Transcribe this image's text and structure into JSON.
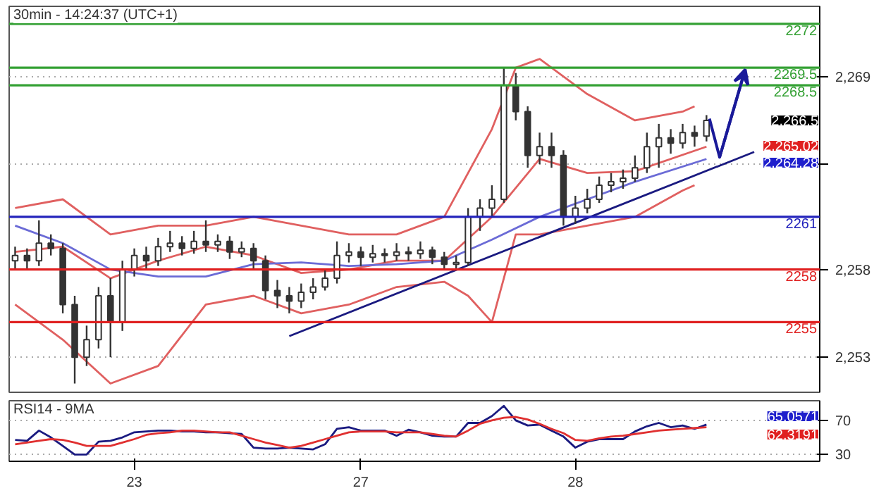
{
  "chart_data": [
    {
      "type": "candlestick",
      "title": "30min - 14:24:37 (UTC+1)",
      "categories": [
        null,
        null,
        null,
        null,
        null,
        null,
        null,
        null,
        null,
        null,
        null,
        null,
        null,
        null,
        null,
        null,
        null,
        null,
        null,
        null,
        null,
        null,
        null,
        null,
        null,
        null,
        null,
        null,
        null,
        null,
        null,
        null,
        null,
        null,
        null,
        null,
        null,
        null,
        null,
        null,
        null,
        null,
        null,
        null,
        null,
        null,
        null,
        null,
        null,
        null,
        null,
        null,
        null,
        null,
        null,
        null,
        null,
        null,
        null,
        null,
        null,
        null,
        null,
        null,
        null,
        null,
        null,
        null
      ],
      "ohlc": [
        [
          2258.5,
          2259.3,
          2258.0,
          2258.8
        ],
        [
          2258.8,
          2259.2,
          2258.0,
          2258.5
        ],
        [
          2258.5,
          2260.8,
          2258.2,
          2259.5
        ],
        [
          2259.5,
          2260.0,
          2258.8,
          2259.2
        ],
        [
          2259.2,
          2259.5,
          2255.5,
          2256.0
        ],
        [
          2256.0,
          2256.5,
          2251.5,
          2253.0
        ],
        [
          2253.0,
          2254.8,
          2252.5,
          2254.0
        ],
        [
          2254.0,
          2257.0,
          2253.5,
          2256.5
        ],
        [
          2256.5,
          2257.5,
          2253.0,
          2255.0
        ],
        [
          2255.0,
          2258.5,
          2254.5,
          2258.0
        ],
        [
          2258.0,
          2259.2,
          2257.6,
          2258.8
        ],
        [
          2258.8,
          2259.3,
          2258.0,
          2258.5
        ],
        [
          2258.5,
          2259.8,
          2258.2,
          2259.3
        ],
        [
          2259.3,
          2260.2,
          2259.0,
          2259.5
        ],
        [
          2259.5,
          2259.9,
          2258.8,
          2259.2
        ],
        [
          2259.2,
          2260.2,
          2258.9,
          2259.6
        ],
        [
          2259.6,
          2260.8,
          2259.0,
          2259.4
        ],
        [
          2259.4,
          2260.0,
          2259.0,
          2259.6
        ],
        [
          2259.6,
          2259.9,
          2258.6,
          2259.0
        ],
        [
          2259.0,
          2259.6,
          2258.7,
          2259.2
        ],
        [
          2259.2,
          2259.5,
          2258.0,
          2258.5
        ],
        [
          2258.5,
          2258.8,
          2256.3,
          2256.8
        ],
        [
          2256.8,
          2257.4,
          2255.8,
          2256.5
        ],
        [
          2256.5,
          2257.0,
          2255.5,
          2256.2
        ],
        [
          2256.2,
          2257.2,
          2255.8,
          2256.7
        ],
        [
          2256.7,
          2257.5,
          2256.3,
          2257.0
        ],
        [
          2257.0,
          2258.0,
          2256.8,
          2257.5
        ],
        [
          2257.5,
          2259.6,
          2257.2,
          2258.8
        ],
        [
          2258.8,
          2259.5,
          2258.4,
          2259.0
        ],
        [
          2259.0,
          2259.3,
          2258.2,
          2258.7
        ],
        [
          2258.7,
          2259.4,
          2258.4,
          2258.9
        ],
        [
          2258.9,
          2259.2,
          2258.4,
          2258.8
        ],
        [
          2258.8,
          2259.5,
          2258.5,
          2259.0
        ],
        [
          2259.0,
          2259.3,
          2258.5,
          2258.9
        ],
        [
          2258.9,
          2259.6,
          2258.6,
          2259.1
        ],
        [
          2259.1,
          2259.3,
          2258.3,
          2258.7
        ],
        [
          2258.7,
          2259.0,
          2258.0,
          2258.3
        ],
        [
          2258.3,
          2258.8,
          2258.0,
          2258.4
        ],
        [
          2258.4,
          2261.5,
          2258.2,
          2261.0
        ],
        [
          2261.0,
          2262.0,
          2260.2,
          2261.5
        ],
        [
          2261.5,
          2262.8,
          2261.0,
          2262.0
        ],
        [
          2262.0,
          2269.5,
          2261.8,
          2268.5
        ],
        [
          2268.5,
          2269.2,
          2266.5,
          2267.0
        ],
        [
          2267.0,
          2267.3,
          2263.8,
          2264.5
        ],
        [
          2264.5,
          2265.8,
          2264.0,
          2265.0
        ],
        [
          2265.0,
          2265.8,
          2263.8,
          2264.5
        ],
        [
          2264.5,
          2264.8,
          2260.5,
          2261.0
        ],
        [
          2261.0,
          2262.2,
          2260.6,
          2261.5
        ],
        [
          2261.5,
          2262.6,
          2261.2,
          2262.0
        ],
        [
          2262.0,
          2263.3,
          2261.8,
          2262.8
        ],
        [
          2262.8,
          2263.5,
          2262.4,
          2263.0
        ],
        [
          2263.0,
          2263.7,
          2262.6,
          2263.2
        ],
        [
          2263.2,
          2264.5,
          2263.0,
          2263.8
        ],
        [
          2263.8,
          2265.8,
          2263.5,
          2265.0
        ],
        [
          2265.0,
          2266.3,
          2263.8,
          2265.5
        ],
        [
          2265.5,
          2266.0,
          2264.6,
          2265.2
        ],
        [
          2265.2,
          2266.3,
          2264.9,
          2265.8
        ],
        [
          2265.8,
          2266.2,
          2265.0,
          2265.6
        ],
        [
          2265.6,
          2266.8,
          2265.3,
          2266.5
        ],
        null,
        null,
        null,
        null,
        null,
        null,
        null,
        null,
        null
      ],
      "color": "#333333",
      "series": [
        {
          "type": "line",
          "color": "#e06060",
          "values": [
            2261.5,
            null,
            null,
            null,
            2262,
            null,
            null,
            null,
            2260,
            null,
            null,
            null,
            2260.5,
            null,
            null,
            null,
            2260.5,
            null,
            null,
            null,
            2261,
            null,
            null,
            null,
            2260.5,
            null,
            null,
            null,
            2260,
            null,
            null,
            null,
            2260,
            null,
            null,
            null,
            2261,
            null,
            null,
            null,
            2266,
            null,
            2269.5,
            null,
            2270,
            null,
            null,
            null,
            2268,
            null,
            null,
            null,
            2266.5,
            null,
            null,
            null,
            2267,
            2267.3,
            null,
            null,
            null,
            null,
            null,
            null,
            null,
            null,
            null,
            null
          ]
        },
        {
          "type": "line",
          "color": "#e06060",
          "values": [
            2259,
            null,
            null,
            null,
            2259.3,
            null,
            null,
            null,
            2257.5,
            null,
            null,
            null,
            2258.5,
            null,
            null,
            null,
            2259.3,
            null,
            null,
            null,
            2258.8,
            null,
            null,
            null,
            2257.8,
            null,
            null,
            null,
            2258,
            null,
            null,
            null,
            2258.5,
            null,
            null,
            null,
            2258.5,
            null,
            null,
            null,
            2261,
            null,
            null,
            null,
            2264.3,
            null,
            null,
            null,
            2263.5,
            null,
            null,
            null,
            2263.6,
            null,
            null,
            null,
            null,
            null,
            2265,
            null,
            null,
            null,
            null,
            null,
            null,
            null,
            null,
            null
          ]
        },
        {
          "type": "line",
          "color": "#e06060",
          "values": [
            2256,
            null,
            null,
            null,
            2254,
            null,
            null,
            null,
            2251.5,
            null,
            null,
            null,
            2252.5,
            null,
            null,
            null,
            2256,
            null,
            null,
            null,
            2256.5,
            null,
            null,
            null,
            2255.5,
            null,
            null,
            null,
            2256,
            null,
            null,
            null,
            2257,
            null,
            null,
            null,
            2257.3,
            null,
            2256.5,
            null,
            2255,
            null,
            2260,
            null,
            2260,
            null,
            null,
            null,
            2260.5,
            null,
            null,
            null,
            2261,
            null,
            null,
            null,
            2262.5,
            2262.8,
            null,
            null,
            null,
            null,
            null,
            null,
            null,
            null,
            null,
            null
          ]
        },
        {
          "type": "line",
          "color": "#6b6bd6",
          "values": [
            2260.5,
            null,
            null,
            null,
            2259.5,
            null,
            null,
            null,
            2258,
            null,
            null,
            null,
            2257.6,
            null,
            null,
            null,
            2257.6,
            null,
            null,
            null,
            2258.3,
            null,
            null,
            null,
            2258.4,
            null,
            null,
            null,
            2258.2,
            null,
            null,
            null,
            2258.3,
            null,
            null,
            null,
            2258.5,
            null,
            null,
            null,
            2259.7,
            null,
            null,
            null,
            2261,
            null,
            null,
            null,
            2262,
            null,
            null,
            null,
            2263,
            null,
            null,
            null,
            null,
            null,
            2264.3,
            null,
            null,
            null,
            null,
            null,
            null,
            null,
            null,
            null
          ]
        },
        {
          "type": "line",
          "color": "#1a1a80",
          "values": [
            null,
            null,
            null,
            null,
            null,
            null,
            null,
            null,
            null,
            null,
            null,
            null,
            null,
            null,
            null,
            null,
            null,
            null,
            null,
            null,
            null,
            null,
            null,
            2254.2,
            null,
            null,
            null,
            null,
            null,
            null,
            null,
            null,
            null,
            null,
            null,
            null,
            null,
            null,
            null,
            null,
            null,
            null,
            null,
            null,
            null,
            null,
            null,
            null,
            null,
            null,
            null,
            null,
            null,
            null,
            null,
            null,
            null,
            null,
            null,
            null,
            null,
            null,
            2264.7,
            null,
            null,
            null,
            null,
            null
          ]
        }
      ],
      "ref_lines": [
        {
          "axis": "y",
          "value": 2272,
          "label": "2272",
          "color": "#33a033"
        },
        {
          "axis": "y",
          "value": 2269.5,
          "label": "2269.5",
          "color": "#33a033"
        },
        {
          "axis": "y",
          "value": 2268.5,
          "label": "2268.5",
          "color": "#33a033"
        },
        {
          "axis": "y",
          "value": 2261,
          "label": "2261",
          "color": "#2222bb"
        },
        {
          "axis": "y",
          "value": 2258,
          "label": "2258",
          "color": "#e02020"
        },
        {
          "axis": "y",
          "value": 2255,
          "label": "2255",
          "color": "#e02020"
        }
      ],
      "annotations": [
        "2,266.5",
        "2,265.02",
        "2,264.28"
      ],
      "ylim": [
        2251,
        2273
      ],
      "yticks": [
        {
          "value": 2253,
          "label": "2,253"
        },
        {
          "value": 2258,
          "label": "2,258"
        },
        {
          "value": 2264,
          "label": null
        },
        {
          "value": 2269,
          "label": "2,269"
        }
      ],
      "grid": "y",
      "tick_labels": "y"
    },
    {
      "type": "line",
      "title": "RSI14 - 9MA",
      "categories": [
        null,
        null,
        null,
        null,
        null,
        null,
        null,
        null,
        null,
        null,
        "23",
        null,
        null,
        null,
        null,
        null,
        null,
        null,
        null,
        null,
        null,
        null,
        null,
        null,
        null,
        null,
        null,
        null,
        null,
        "27",
        null,
        null,
        null,
        null,
        null,
        null,
        null,
        null,
        null,
        null,
        null,
        null,
        null,
        null,
        null,
        null,
        null,
        "28",
        null,
        null,
        null,
        null,
        null,
        null,
        null,
        null,
        null,
        null,
        null,
        null,
        null,
        null,
        null,
        null,
        null,
        null,
        null,
        null
      ],
      "series": [
        {
          "color": "#1a1a80",
          "values": [
            47,
            46,
            58,
            50,
            40,
            30,
            30,
            45,
            46,
            50,
            56,
            57,
            58,
            58,
            57,
            57,
            56,
            56,
            55,
            54,
            38,
            37,
            37,
            38,
            37,
            36,
            42,
            60,
            62,
            58,
            58,
            58,
            52,
            59,
            56,
            52,
            51,
            51,
            67,
            67,
            75,
            87,
            70,
            64,
            65,
            58,
            51,
            38,
            45,
            48,
            48,
            48,
            57,
            63,
            67,
            62,
            64,
            60,
            65,
            null,
            null,
            null,
            null,
            null,
            null,
            null,
            null,
            null
          ]
        },
        {
          "color": "#e03030",
          "values": [
            42,
            44,
            46,
            48,
            47,
            44,
            40,
            40,
            40,
            44,
            48,
            53,
            55,
            56,
            58,
            58,
            57,
            56,
            56,
            52,
            48,
            44,
            41,
            38,
            40,
            44,
            48,
            52,
            56,
            57,
            57,
            57,
            56,
            56,
            56,
            54,
            52,
            51,
            58,
            66,
            70,
            73,
            74,
            71,
            66,
            60,
            55,
            47,
            46,
            49,
            51,
            52,
            54,
            56,
            58,
            59,
            60,
            61,
            62,
            null,
            null,
            null,
            null,
            null,
            null,
            null,
            null,
            null
          ]
        }
      ],
      "annotations": [
        "65.0571",
        "62.3191"
      ],
      "ylim": [
        22,
        93
      ],
      "yticks": [
        30,
        70
      ],
      "grid": "y"
    }
  ]
}
